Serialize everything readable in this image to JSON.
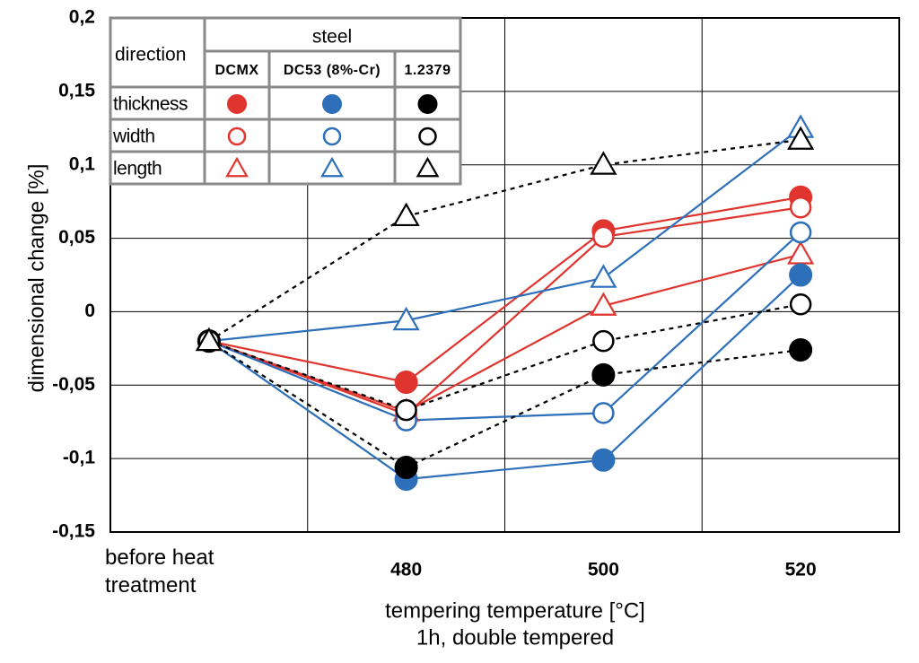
{
  "chart_data": {
    "type": "line",
    "ylabel": "dimensional change [%]",
    "xlabel": "tempering temperature [°C]",
    "xlabel_note": "1h, double tempered",
    "categories": [
      "before heat treatment",
      "480",
      "500",
      "520"
    ],
    "ylim": [
      -0.15,
      0.2
    ],
    "yticks": [
      {
        "value": 0.2,
        "label": "0,2"
      },
      {
        "value": 0.15,
        "label": "0,15"
      },
      {
        "value": 0.1,
        "label": "0,1"
      },
      {
        "value": 0.05,
        "label": "0,05"
      },
      0,
      {
        "value": -0.05,
        "label": "-0,05"
      },
      {
        "value": -0.1,
        "label": "-0,1"
      },
      {
        "value": -0.15,
        "label": "-0,15"
      }
    ],
    "grid": true,
    "legend_row_title": "direction",
    "legend_column_title": "steel",
    "directions": [
      "thickness",
      "width",
      "length"
    ],
    "series": [
      {
        "name": "DCMX",
        "color": "#e0352f",
        "dashed": false,
        "thickness": [
          -0.02,
          -0.048,
          0.055,
          0.078
        ],
        "width": [
          -0.02,
          -0.07,
          0.051,
          0.071
        ],
        "length": [
          -0.02,
          -0.068,
          0.004,
          0.039
        ]
      },
      {
        "name": "DC53 (8%-Cr)",
        "color": "#2e6fba",
        "dashed": false,
        "thickness": [
          -0.02,
          -0.114,
          -0.101,
          0.025
        ],
        "width": [
          -0.02,
          -0.074,
          -0.069,
          0.054
        ],
        "length": [
          -0.02,
          -0.006,
          0.023,
          0.125
        ]
      },
      {
        "name": "1.2379",
        "color": "#000000",
        "dashed": true,
        "thickness": [
          -0.02,
          -0.106,
          -0.043,
          -0.026
        ],
        "width": [
          -0.02,
          -0.067,
          -0.02,
          0.005
        ],
        "length": [
          -0.02,
          0.065,
          0.1,
          0.117
        ]
      }
    ]
  }
}
